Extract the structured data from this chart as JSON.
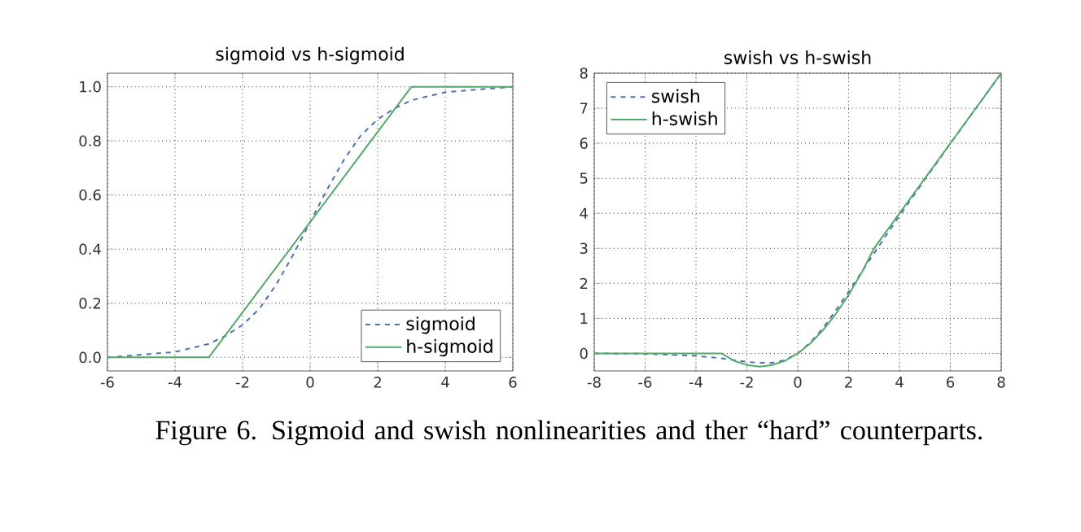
{
  "chart_data": [
    {
      "type": "line",
      "title": "sigmoid vs h-sigmoid",
      "xlim": [
        -6,
        6
      ],
      "ylim": [
        -0.05,
        1.05
      ],
      "xticks": [
        -6,
        -4,
        -2,
        0,
        2,
        4,
        6
      ],
      "yticks": [
        {
          "value": 0,
          "label": "0.0"
        },
        {
          "value": 0.2,
          "label": "0.2"
        },
        {
          "value": 0.4,
          "label": "0.4"
        },
        {
          "value": 0.6,
          "label": "0.6"
        },
        {
          "value": 0.8,
          "label": "0.8"
        },
        {
          "value": 1,
          "label": "1.0"
        }
      ],
      "grid": true,
      "legend": "bottom right",
      "series": [
        {
          "name": "sigmoid",
          "color": "#4c72b0",
          "line_style": "dashed",
          "x": [
            -6,
            -5,
            -4,
            -3,
            -2.5,
            -2,
            -1.5,
            -1,
            -0.5,
            0,
            0.5,
            1,
            1.5,
            2,
            2.5,
            3,
            4,
            5,
            6
          ],
          "values": [
            0.0,
            0.01,
            0.02,
            0.05,
            0.08,
            0.12,
            0.18,
            0.27,
            0.38,
            0.5,
            0.62,
            0.73,
            0.82,
            0.88,
            0.92,
            0.95,
            0.98,
            0.99,
            1.0
          ]
        },
        {
          "name": "h-sigmoid",
          "color": "#55a868",
          "line_style": "solid",
          "x": [
            -6,
            -3,
            3,
            6
          ],
          "values": [
            0,
            0,
            1,
            1
          ]
        }
      ],
      "annotations": [
        "Figure 6. Sigmoid and swish nonlinearities and ther “hard” counterparts."
      ]
    },
    {
      "type": "line",
      "title": "swish vs h-swish",
      "xlim": [
        -8,
        8
      ],
      "ylim": [
        -0.5,
        8
      ],
      "xticks": [
        -8,
        -6,
        -4,
        -2,
        0,
        2,
        4,
        6,
        8
      ],
      "yticks": [
        0,
        1,
        2,
        3,
        4,
        5,
        6,
        7,
        8
      ],
      "grid": true,
      "legend": "top left",
      "series": [
        {
          "name": "swish",
          "color": "#4c72b0",
          "line_style": "dashed",
          "x": [
            -8,
            -6,
            -4,
            -3,
            -2,
            -1.5,
            -1,
            -0.5,
            0,
            0.5,
            1,
            1.5,
            2,
            3,
            4,
            5,
            6,
            8
          ],
          "values": [
            0,
            -0.01,
            -0.07,
            -0.14,
            -0.24,
            -0.27,
            -0.27,
            -0.19,
            0,
            0.31,
            0.73,
            1.23,
            1.76,
            2.86,
            3.93,
            4.97,
            5.99,
            8
          ]
        },
        {
          "name": "h-swish",
          "color": "#55a868",
          "line_style": "solid",
          "x": [
            -8,
            -3,
            -2.5,
            -2,
            -1.5,
            -1,
            -0.5,
            0,
            0.5,
            1,
            1.5,
            2,
            2.5,
            3,
            8
          ],
          "values": [
            0,
            0,
            -0.21,
            -0.33,
            -0.38,
            -0.33,
            -0.21,
            0,
            0.29,
            0.67,
            1.13,
            1.67,
            2.29,
            3,
            8
          ]
        }
      ]
    }
  ]
}
